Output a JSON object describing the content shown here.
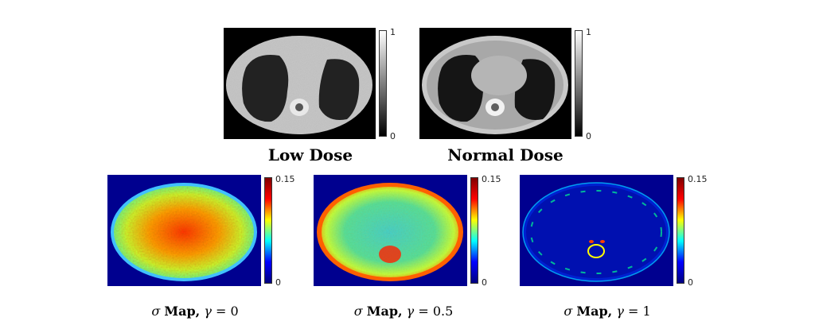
{
  "top_panels": [
    {
      "caption": "Low Dose",
      "cbar_max": "1",
      "cbar_min": "0"
    },
    {
      "caption": "Normal Dose",
      "cbar_max": "1",
      "cbar_min": "0"
    }
  ],
  "bottom_panels": [
    {
      "symbol": "σ",
      "label": "Map,",
      "gamma_symbol": "γ",
      "eq": "= 0",
      "cbar_max": "0.15",
      "cbar_min": "0"
    },
    {
      "symbol": "σ",
      "label": "Map,",
      "gamma_symbol": "γ",
      "eq": "= 0.5",
      "cbar_max": "0.15",
      "cbar_min": "0"
    },
    {
      "symbol": "σ",
      "label": "Map,",
      "gamma_symbol": "γ",
      "eq": "= 1",
      "cbar_max": "0.15",
      "cbar_min": "0"
    }
  ],
  "colors": {
    "ct_background": "#000000",
    "map_background": "#00008f",
    "jet_low": "#00007f",
    "jet_high": "#7f0000"
  }
}
